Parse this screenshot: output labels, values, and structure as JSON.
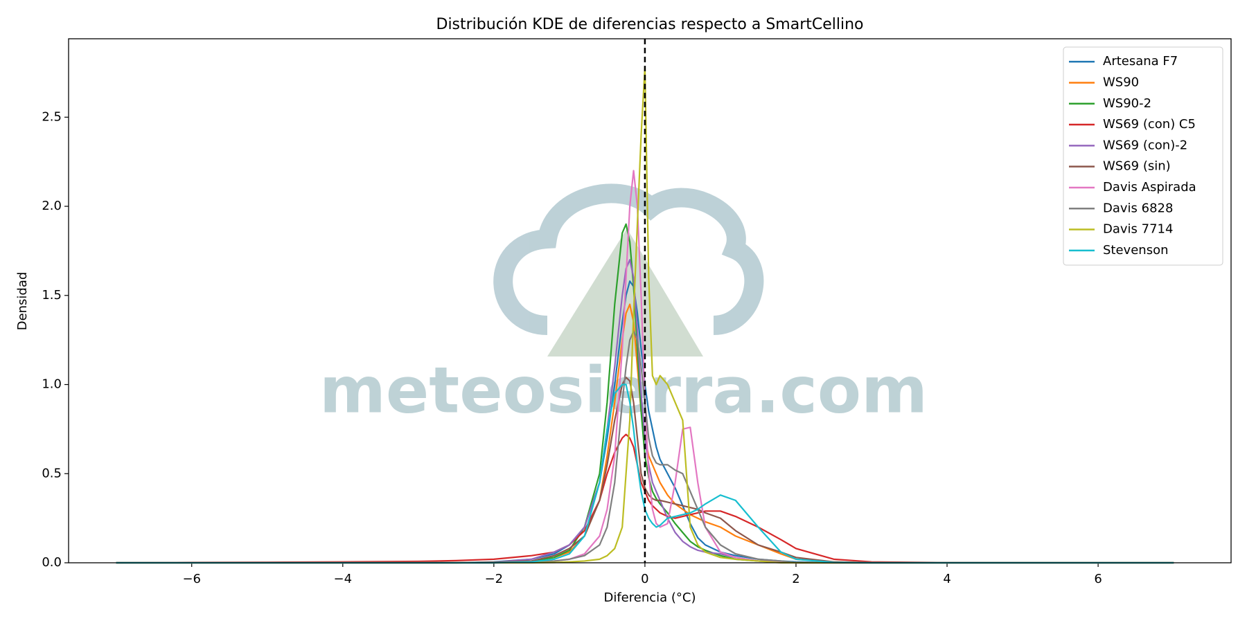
{
  "chart_data": {
    "type": "line",
    "title": "Distribución KDE de diferencias respecto a SmartCellino",
    "x_label": "Diferencia (°C)",
    "y_label": "Densidad",
    "watermark": "meteosierra.com",
    "reference_line_x": 0,
    "legend": "upper right",
    "grid": false,
    "xlim": [
      -7.63,
      7.76
    ],
    "ylim": [
      0,
      2.94
    ],
    "xticks": [
      {
        "value": -6,
        "label": "−6"
      },
      {
        "value": -4,
        "label": "−4"
      },
      {
        "value": -2,
        "label": "−2"
      },
      0,
      2,
      4,
      6
    ],
    "yticks": [
      {
        "value": 0,
        "label": "0.0"
      },
      {
        "value": 0.5,
        "label": "0.5"
      },
      {
        "value": 1,
        "label": "1.0"
      },
      {
        "value": 1.5,
        "label": "1.5"
      },
      {
        "value": 2,
        "label": "2.0"
      },
      {
        "value": 2.5,
        "label": "2.5"
      }
    ],
    "x": [
      -7,
      -6,
      -5,
      -4,
      -3,
      -2.5,
      -2,
      -1.5,
      -1.2,
      -1,
      -0.8,
      -0.6,
      -0.5,
      -0.4,
      -0.3,
      -0.25,
      -0.2,
      -0.15,
      -0.1,
      -0.05,
      0,
      0.05,
      0.1,
      0.15,
      0.2,
      0.3,
      0.4,
      0.5,
      0.6,
      0.7,
      0.8,
      1,
      1.2,
      1.5,
      1.8,
      2,
      2.5,
      3,
      4,
      5,
      6,
      7
    ],
    "series": [
      {
        "name": "Artesana F7",
        "color": "#1f77b4",
        "values": [
          0,
          0,
          0,
          0,
          0,
          0,
          0.005,
          0.02,
          0.05,
          0.1,
          0.2,
          0.45,
          0.7,
          1.0,
          1.35,
          1.5,
          1.58,
          1.55,
          1.4,
          1.2,
          1.0,
          0.85,
          0.75,
          0.65,
          0.58,
          0.5,
          0.42,
          0.32,
          0.22,
          0.14,
          0.1,
          0.06,
          0.04,
          0.02,
          0.01,
          0.005,
          0,
          0,
          0,
          0,
          0,
          0
        ]
      },
      {
        "name": "WS90",
        "color": "#ff7f0e",
        "values": [
          0,
          0,
          0,
          0,
          0,
          0,
          0.003,
          0.01,
          0.03,
          0.06,
          0.15,
          0.35,
          0.6,
          0.9,
          1.25,
          1.4,
          1.45,
          1.35,
          1.1,
          0.85,
          0.7,
          0.6,
          0.55,
          0.5,
          0.45,
          0.38,
          0.33,
          0.3,
          0.27,
          0.25,
          0.23,
          0.2,
          0.15,
          0.1,
          0.05,
          0.02,
          0.005,
          0,
          0,
          0,
          0,
          0
        ]
      },
      {
        "name": "WS90-2",
        "color": "#2ca02c",
        "values": [
          0,
          0,
          0,
          0,
          0,
          0,
          0.002,
          0.01,
          0.03,
          0.07,
          0.2,
          0.5,
          0.9,
          1.45,
          1.85,
          1.9,
          1.8,
          1.55,
          1.2,
          0.85,
          0.6,
          0.48,
          0.4,
          0.36,
          0.33,
          0.28,
          0.22,
          0.17,
          0.12,
          0.09,
          0.07,
          0.04,
          0.02,
          0.01,
          0.005,
          0,
          0,
          0,
          0,
          0,
          0,
          0
        ]
      },
      {
        "name": "WS69 (con) C5",
        "color": "#d62728",
        "values": [
          0,
          0.002,
          0.003,
          0.005,
          0.008,
          0.012,
          0.02,
          0.04,
          0.06,
          0.1,
          0.18,
          0.35,
          0.5,
          0.62,
          0.7,
          0.72,
          0.7,
          0.65,
          0.55,
          0.45,
          0.4,
          0.35,
          0.32,
          0.3,
          0.28,
          0.26,
          0.25,
          0.26,
          0.27,
          0.28,
          0.29,
          0.29,
          0.26,
          0.2,
          0.13,
          0.08,
          0.02,
          0.005,
          0.001,
          0,
          0,
          0
        ]
      },
      {
        "name": "WS69 (con)-2",
        "color": "#9467bd",
        "values": [
          0,
          0,
          0,
          0,
          0,
          0,
          0.003,
          0.02,
          0.06,
          0.1,
          0.2,
          0.45,
          0.75,
          1.1,
          1.5,
          1.65,
          1.7,
          1.6,
          1.3,
          0.95,
          0.7,
          0.55,
          0.45,
          0.4,
          0.35,
          0.25,
          0.17,
          0.12,
          0.09,
          0.07,
          0.06,
          0.05,
          0.03,
          0.01,
          0.005,
          0,
          0,
          0,
          0,
          0,
          0,
          0
        ]
      },
      {
        "name": "WS69 (sin)",
        "color": "#8c564b",
        "values": [
          0,
          0,
          0,
          0,
          0,
          0,
          0.003,
          0.01,
          0.04,
          0.08,
          0.15,
          0.35,
          0.55,
          0.8,
          1.0,
          1.04,
          1.02,
          0.9,
          0.7,
          0.5,
          0.42,
          0.38,
          0.36,
          0.35,
          0.35,
          0.34,
          0.33,
          0.32,
          0.31,
          0.3,
          0.28,
          0.25,
          0.18,
          0.1,
          0.06,
          0.03,
          0.005,
          0,
          0,
          0,
          0,
          0
        ]
      },
      {
        "name": "Davis Aspirada",
        "color": "#e377c2",
        "values": [
          0,
          0,
          0,
          0,
          0,
          0,
          0,
          0.002,
          0.01,
          0.02,
          0.05,
          0.15,
          0.3,
          0.6,
          1.2,
          1.6,
          2.0,
          2.2,
          2.0,
          1.5,
          0.9,
          0.5,
          0.3,
          0.22,
          0.2,
          0.22,
          0.45,
          0.75,
          0.76,
          0.45,
          0.2,
          0.06,
          0.03,
          0.01,
          0.005,
          0,
          0,
          0,
          0,
          0,
          0,
          0
        ]
      },
      {
        "name": "Davis 6828",
        "color": "#7f7f7f",
        "values": [
          0,
          0,
          0,
          0,
          0,
          0,
          0,
          0.003,
          0.01,
          0.02,
          0.04,
          0.1,
          0.2,
          0.45,
          0.9,
          1.1,
          1.25,
          1.3,
          1.25,
          1.1,
          0.9,
          0.7,
          0.6,
          0.56,
          0.55,
          0.55,
          0.52,
          0.5,
          0.4,
          0.3,
          0.2,
          0.1,
          0.05,
          0.02,
          0.01,
          0,
          0,
          0,
          0,
          0,
          0,
          0
        ]
      },
      {
        "name": "Davis 7714",
        "color": "#bcbd22",
        "values": [
          0,
          0,
          0,
          0,
          0,
          0,
          0,
          0,
          0.002,
          0.005,
          0.01,
          0.02,
          0.04,
          0.08,
          0.2,
          0.5,
          0.8,
          1.4,
          1.9,
          2.4,
          2.78,
          1.6,
          1.05,
          1.0,
          1.05,
          1.0,
          0.9,
          0.8,
          0.2,
          0.1,
          0.06,
          0.03,
          0.02,
          0.01,
          0,
          0,
          0,
          0,
          0,
          0,
          0,
          0
        ]
      },
      {
        "name": "Stevenson",
        "color": "#17becf",
        "values": [
          0,
          0,
          0,
          0,
          0,
          0,
          0,
          0.005,
          0.02,
          0.05,
          0.15,
          0.45,
          0.75,
          0.95,
          1.0,
          1.0,
          0.9,
          0.75,
          0.55,
          0.4,
          0.3,
          0.25,
          0.22,
          0.2,
          0.21,
          0.25,
          0.26,
          0.27,
          0.28,
          0.3,
          0.33,
          0.38,
          0.35,
          0.2,
          0.06,
          0.02,
          0.002,
          0,
          0,
          0,
          0,
          0
        ]
      }
    ]
  }
}
